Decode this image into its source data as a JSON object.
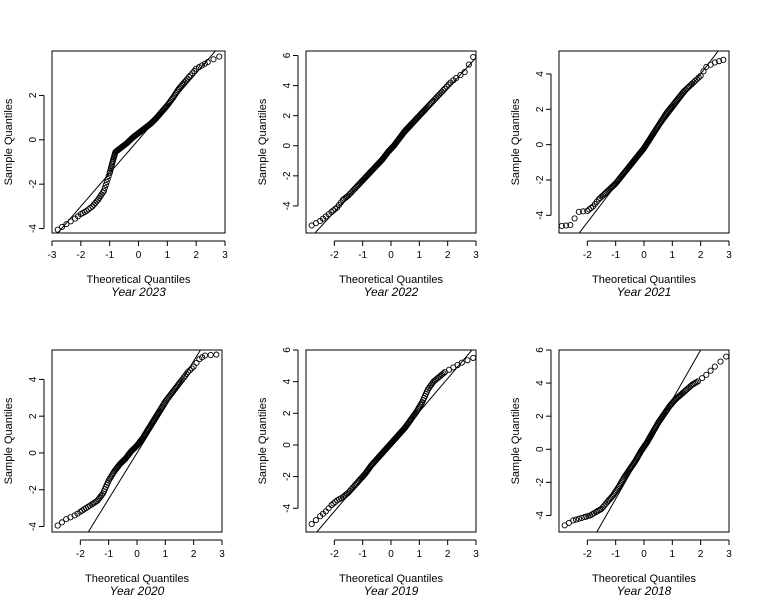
{
  "figure": {
    "background": "#ffffff",
    "point_color": "#000000",
    "line_color": "#000000"
  },
  "chart_data": [
    {
      "type": "scatter",
      "title": "Year 2023",
      "xlabel": "Theoretical Quantiles",
      "ylabel": "Sample Quantiles",
      "xlim": [
        -3,
        3
      ],
      "ylim": [
        -4,
        4
      ],
      "xticks": [
        -3,
        -2,
        -1,
        0,
        1,
        2,
        3
      ],
      "yticks": [
        -4,
        -2,
        0,
        2
      ],
      "grid": false,
      "reference_line": {
        "intercept": 0.0,
        "slope": 1.5
      },
      "quantile_points": [
        [
          -2.8,
          -4.05
        ],
        [
          -2.5,
          -3.8
        ],
        [
          -2.2,
          -3.55
        ],
        [
          -2.0,
          -3.35
        ],
        [
          -1.8,
          -3.2
        ],
        [
          -1.6,
          -3.0
        ],
        [
          -1.4,
          -2.7
        ],
        [
          -1.2,
          -2.3
        ],
        [
          -1.0,
          -1.5
        ],
        [
          -0.9,
          -1.0
        ],
        [
          -0.8,
          -0.55
        ],
        [
          -0.6,
          -0.35
        ],
        [
          -0.4,
          -0.15
        ],
        [
          -0.2,
          0.1
        ],
        [
          0.0,
          0.3
        ],
        [
          0.2,
          0.5
        ],
        [
          0.4,
          0.7
        ],
        [
          0.6,
          0.95
        ],
        [
          0.8,
          1.25
        ],
        [
          1.0,
          1.55
        ],
        [
          1.2,
          1.9
        ],
        [
          1.4,
          2.3
        ],
        [
          1.6,
          2.6
        ],
        [
          1.8,
          2.9
        ],
        [
          2.0,
          3.2
        ],
        [
          2.2,
          3.35
        ],
        [
          2.4,
          3.5
        ],
        [
          2.8,
          3.75
        ]
      ]
    },
    {
      "type": "scatter",
      "title": "Year 2022",
      "xlabel": "Theoretical Quantiles",
      "ylabel": "Sample Quantiles",
      "xlim": [
        -3,
        3
      ],
      "ylim": [
        -6,
        6
      ],
      "xticks": [
        -2,
        -1,
        0,
        1,
        2,
        3
      ],
      "yticks": [
        -4,
        -2,
        0,
        2,
        4,
        6
      ],
      "grid": false,
      "reference_line": {
        "intercept": -0.3,
        "slope": 2.05
      },
      "quantile_points": [
        [
          -2.8,
          -5.3
        ],
        [
          -2.5,
          -5.0
        ],
        [
          -2.3,
          -4.7
        ],
        [
          -2.1,
          -4.4
        ],
        [
          -1.9,
          -4.1
        ],
        [
          -1.7,
          -3.6
        ],
        [
          -1.5,
          -3.3
        ],
        [
          -1.3,
          -2.9
        ],
        [
          -1.1,
          -2.5
        ],
        [
          -0.9,
          -2.1
        ],
        [
          -0.7,
          -1.7
        ],
        [
          -0.5,
          -1.3
        ],
        [
          -0.3,
          -0.9
        ],
        [
          -0.1,
          -0.4
        ],
        [
          0.1,
          0.0
        ],
        [
          0.3,
          0.5
        ],
        [
          0.5,
          1.0
        ],
        [
          0.7,
          1.4
        ],
        [
          0.9,
          1.8
        ],
        [
          1.1,
          2.2
        ],
        [
          1.3,
          2.6
        ],
        [
          1.5,
          3.0
        ],
        [
          1.7,
          3.4
        ],
        [
          1.9,
          3.8
        ],
        [
          2.1,
          4.2
        ],
        [
          2.3,
          4.5
        ],
        [
          2.6,
          4.9
        ],
        [
          2.9,
          5.9
        ]
      ]
    },
    {
      "type": "scatter",
      "title": "Year 2021",
      "xlabel": "Theoretical Quantiles",
      "ylabel": "Sample Quantiles",
      "xlim": [
        -3,
        3
      ],
      "ylim": [
        -4,
        4
      ],
      "xticks": [
        -2,
        -1,
        0,
        1,
        2,
        3
      ],
      "yticks": [
        -4,
        -2,
        0,
        2,
        4
      ],
      "grid": false,
      "reference_line": {
        "intercept": -0.2,
        "slope": 2.1
      },
      "quantile_points": [
        [
          -2.9,
          -4.6
        ],
        [
          -2.6,
          -4.55
        ],
        [
          -2.3,
          -3.8
        ],
        [
          -2.0,
          -3.75
        ],
        [
          -1.8,
          -3.5
        ],
        [
          -1.6,
          -3.1
        ],
        [
          -1.4,
          -2.8
        ],
        [
          -1.2,
          -2.5
        ],
        [
          -1.0,
          -2.2
        ],
        [
          -0.8,
          -1.8
        ],
        [
          -0.6,
          -1.4
        ],
        [
          -0.4,
          -1.0
        ],
        [
          -0.2,
          -0.6
        ],
        [
          0.0,
          -0.2
        ],
        [
          0.2,
          0.3
        ],
        [
          0.4,
          0.8
        ],
        [
          0.6,
          1.3
        ],
        [
          0.8,
          1.8
        ],
        [
          1.0,
          2.2
        ],
        [
          1.2,
          2.6
        ],
        [
          1.4,
          3.0
        ],
        [
          1.6,
          3.3
        ],
        [
          1.8,
          3.6
        ],
        [
          2.0,
          3.9
        ],
        [
          2.2,
          4.4
        ],
        [
          2.5,
          4.65
        ],
        [
          2.8,
          4.8
        ]
      ]
    },
    {
      "type": "scatter",
      "title": "Year 2020",
      "xlabel": "Theoretical Quantiles",
      "ylabel": "Sample Quantiles",
      "xlim": [
        -3,
        3
      ],
      "ylim": [
        -4,
        4
      ],
      "xticks": [
        -2,
        -1,
        0,
        1,
        2,
        3
      ],
      "yticks": [
        -4,
        -2,
        0,
        2,
        4
      ],
      "grid": false,
      "reference_line": {
        "intercept": 0.0,
        "slope": 2.5
      },
      "quantile_points": [
        [
          -2.8,
          -3.95
        ],
        [
          -2.5,
          -3.6
        ],
        [
          -2.2,
          -3.4
        ],
        [
          -2.0,
          -3.2
        ],
        [
          -1.8,
          -3.0
        ],
        [
          -1.6,
          -2.8
        ],
        [
          -1.4,
          -2.6
        ],
        [
          -1.2,
          -2.2
        ],
        [
          -1.0,
          -1.5
        ],
        [
          -0.8,
          -1.0
        ],
        [
          -0.6,
          -0.6
        ],
        [
          -0.4,
          -0.3
        ],
        [
          -0.2,
          0.1
        ],
        [
          0.0,
          0.4
        ],
        [
          0.2,
          0.8
        ],
        [
          0.4,
          1.3
        ],
        [
          0.6,
          1.8
        ],
        [
          0.8,
          2.3
        ],
        [
          1.0,
          2.8
        ],
        [
          1.2,
          3.2
        ],
        [
          1.4,
          3.6
        ],
        [
          1.6,
          4.0
        ],
        [
          1.8,
          4.4
        ],
        [
          2.0,
          4.7
        ],
        [
          2.2,
          5.1
        ],
        [
          2.4,
          5.3
        ],
        [
          2.8,
          5.35
        ]
      ]
    },
    {
      "type": "scatter",
      "title": "Year 2019",
      "xlabel": "Theoretical Quantiles",
      "ylabel": "Sample Quantiles",
      "xlim": [
        -3,
        3
      ],
      "ylim": [
        -4,
        6
      ],
      "xticks": [
        -2,
        -1,
        0,
        1,
        2,
        3
      ],
      "yticks": [
        -4,
        -2,
        0,
        2,
        4,
        6
      ],
      "grid": false,
      "reference_line": {
        "intercept": 0.0,
        "slope": 2.1
      },
      "quantile_points": [
        [
          -2.8,
          -5.0
        ],
        [
          -2.5,
          -4.5
        ],
        [
          -2.3,
          -4.2
        ],
        [
          -2.1,
          -3.8
        ],
        [
          -1.9,
          -3.5
        ],
        [
          -1.7,
          -3.3
        ],
        [
          -1.5,
          -3.0
        ],
        [
          -1.3,
          -2.6
        ],
        [
          -1.1,
          -2.2
        ],
        [
          -0.9,
          -1.8
        ],
        [
          -0.7,
          -1.3
        ],
        [
          -0.5,
          -0.9
        ],
        [
          -0.3,
          -0.5
        ],
        [
          -0.1,
          -0.1
        ],
        [
          0.1,
          0.3
        ],
        [
          0.3,
          0.7
        ],
        [
          0.5,
          1.1
        ],
        [
          0.7,
          1.6
        ],
        [
          0.9,
          2.1
        ],
        [
          1.1,
          2.7
        ],
        [
          1.3,
          3.5
        ],
        [
          1.5,
          4.0
        ],
        [
          1.7,
          4.3
        ],
        [
          1.9,
          4.6
        ],
        [
          2.2,
          4.9
        ],
        [
          2.5,
          5.2
        ],
        [
          2.9,
          5.5
        ]
      ]
    },
    {
      "type": "scatter",
      "title": "Year 2018",
      "xlabel": "Theoretical Quantiles",
      "ylabel": "Sample Quantiles",
      "xlim": [
        -3,
        3
      ],
      "ylim": [
        -4,
        6
      ],
      "xticks": [
        -2,
        -1,
        0,
        1,
        2,
        3
      ],
      "yticks": [
        -4,
        -2,
        0,
        2,
        4,
        6
      ],
      "grid": false,
      "reference_line": {
        "intercept": 0.0,
        "slope": 3.0
      },
      "quantile_points": [
        [
          -2.8,
          -4.6
        ],
        [
          -2.5,
          -4.3
        ],
        [
          -2.3,
          -4.2
        ],
        [
          -2.1,
          -4.1
        ],
        [
          -1.9,
          -4.0
        ],
        [
          -1.7,
          -3.8
        ],
        [
          -1.5,
          -3.6
        ],
        [
          -1.3,
          -3.2
        ],
        [
          -1.1,
          -2.8
        ],
        [
          -0.9,
          -2.3
        ],
        [
          -0.7,
          -1.7
        ],
        [
          -0.5,
          -1.2
        ],
        [
          -0.3,
          -0.7
        ],
        [
          -0.1,
          -0.1
        ],
        [
          0.1,
          0.4
        ],
        [
          0.3,
          1.0
        ],
        [
          0.5,
          1.6
        ],
        [
          0.7,
          2.1
        ],
        [
          0.9,
          2.6
        ],
        [
          1.1,
          3.0
        ],
        [
          1.3,
          3.3
        ],
        [
          1.5,
          3.6
        ],
        [
          1.7,
          3.9
        ],
        [
          1.9,
          4.1
        ],
        [
          2.2,
          4.5
        ],
        [
          2.5,
          5.0
        ],
        [
          2.9,
          5.6
        ]
      ]
    }
  ]
}
